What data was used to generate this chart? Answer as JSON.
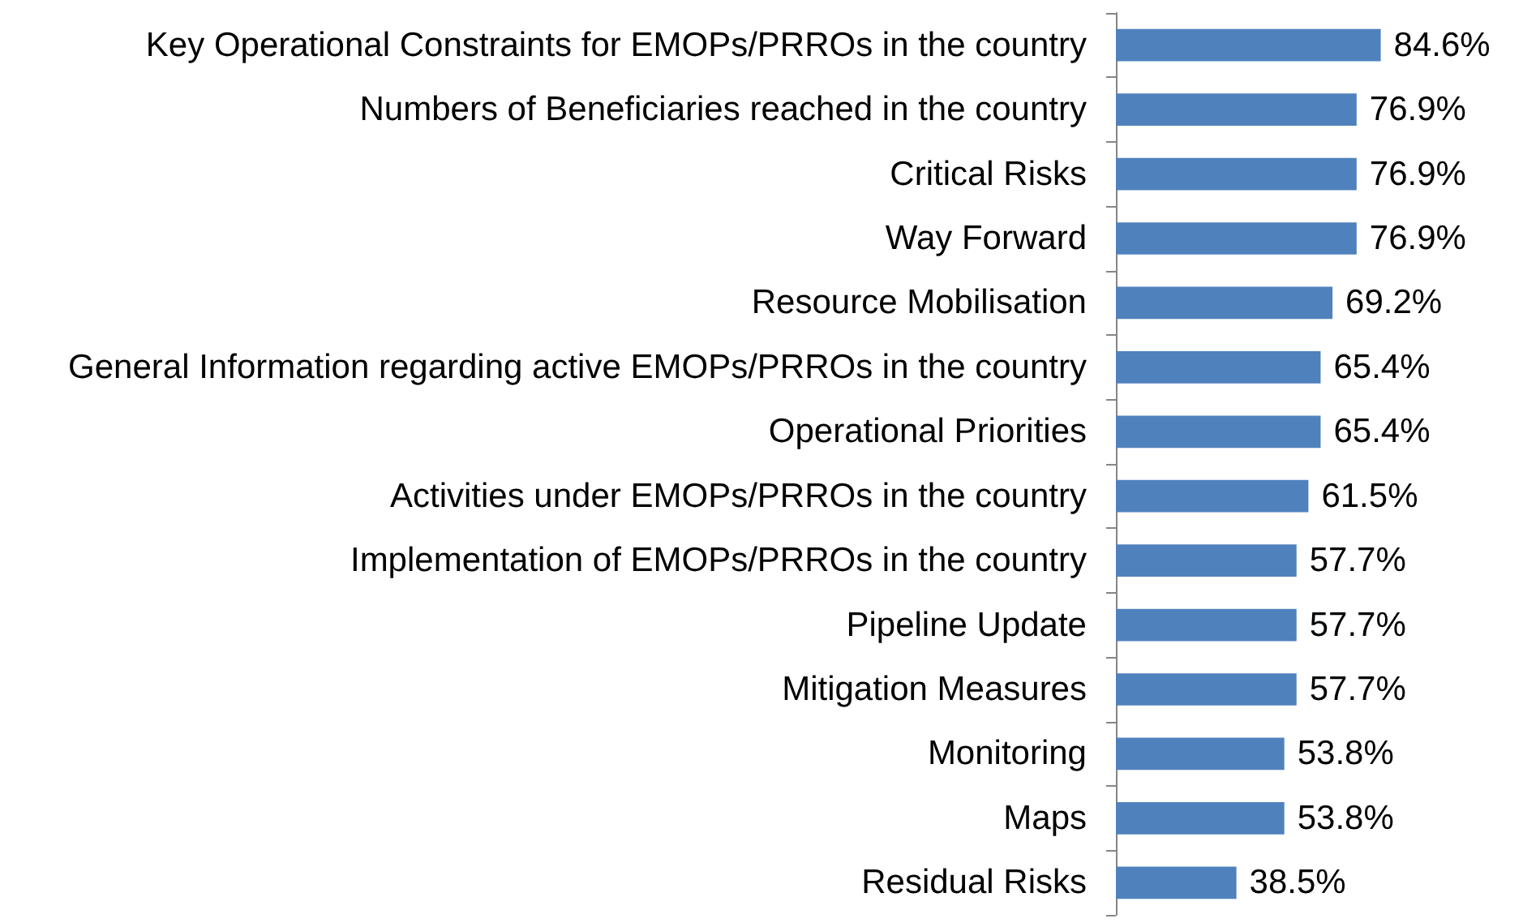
{
  "chart_data": {
    "type": "bar",
    "orientation": "horizontal",
    "categories": [
      "Key Operational Constraints for EMOPs/PRROs in the country",
      "Numbers of Beneficiaries reached in the country",
      "Critical Risks",
      "Way Forward",
      "Resource Mobilisation",
      "General Information regarding active EMOPs/PRROs in the country",
      "Operational Priorities",
      "Activities under EMOPs/PRROs in the country",
      "Implementation of EMOPs/PRROs in the country",
      "Pipeline Update",
      "Mitigation Measures",
      "Monitoring",
      "Maps",
      "Residual Risks"
    ],
    "values": [
      84.6,
      76.9,
      76.9,
      76.9,
      69.2,
      65.4,
      65.4,
      61.5,
      57.7,
      57.7,
      57.7,
      53.8,
      53.8,
      38.5
    ],
    "value_labels": [
      "84.6%",
      "76.9%",
      "76.9%",
      "76.9%",
      "69.2%",
      "65.4%",
      "65.4%",
      "61.5%",
      "57.7%",
      "57.7%",
      "57.7%",
      "53.8%",
      "53.8%",
      "38.5%"
    ],
    "color": "#4f81bd"
  }
}
